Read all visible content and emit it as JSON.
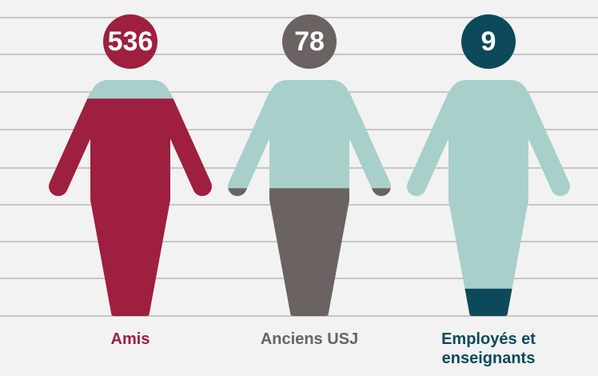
{
  "chart_data": {
    "type": "pictogram",
    "categories": [
      "Amis",
      "Anciens USJ",
      "Employés et enseignants"
    ],
    "values": [
      536,
      78,
      9
    ],
    "colors": [
      "#9e1f3f",
      "#6b6262",
      "#0c4a5b"
    ],
    "empty_color": "#a8cfca",
    "ylim": [
      5,
      800
    ],
    "log_scale": true
  }
}
